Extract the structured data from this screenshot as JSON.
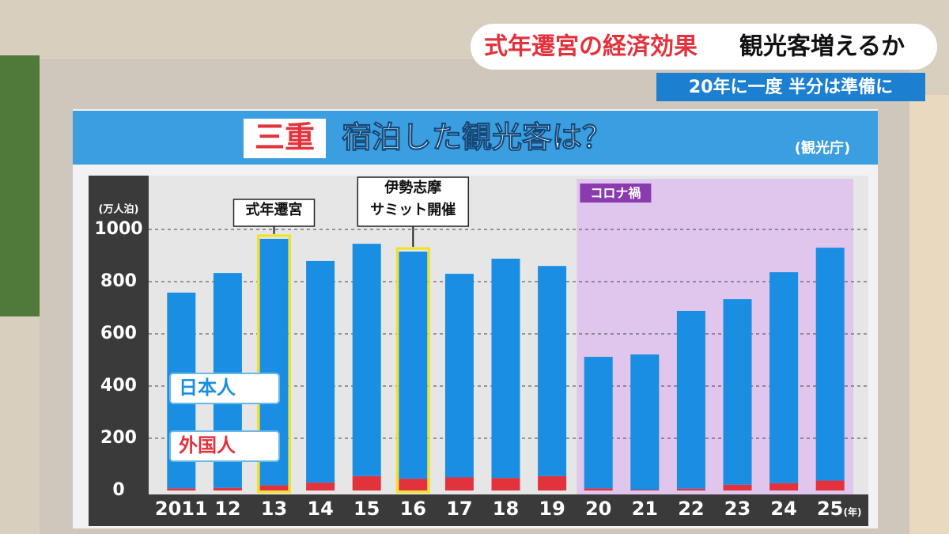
{
  "banner": {
    "highlight": "式年遷宮の経済効果",
    "text": "観光客増えるか",
    "sub": "20年に一度 半分は準備に"
  },
  "chart_data": {
    "type": "bar",
    "stacked": true,
    "title_highlight": "三重",
    "title": "宿泊した観光客は？",
    "source": "(観光庁)",
    "y_label": "(万人泊)",
    "x_unit": "(年)",
    "categories": [
      "2011",
      "12",
      "13",
      "14",
      "15",
      "16",
      "17",
      "18",
      "19",
      "20",
      "21",
      "22",
      "23",
      "24",
      "25"
    ],
    "series": [
      {
        "name": "外国人",
        "color": "#e2323c",
        "values": [
          8,
          10,
          20,
          30,
          55,
          45,
          50,
          48,
          55,
          8,
          3,
          7,
          22,
          28,
          38
        ]
      },
      {
        "name": "日本人",
        "color": "#1a8ee2",
        "values": [
          750,
          823,
          944,
          849,
          890,
          870,
          780,
          840,
          805,
          504,
          518,
          681,
          711,
          808,
          892
        ]
      }
    ],
    "ylim": [
      0,
      1000
    ],
    "yticks": [
      0,
      200,
      400,
      600,
      800,
      1000
    ],
    "grid": true,
    "annotations": [
      {
        "lines": [
          "式年遷宮"
        ],
        "category": "13"
      },
      {
        "lines": [
          "伊勢志摩",
          "サミット開催"
        ],
        "category": "16"
      }
    ],
    "period": {
      "text": "コロナ禍",
      "from": "20",
      "to": "25"
    }
  }
}
